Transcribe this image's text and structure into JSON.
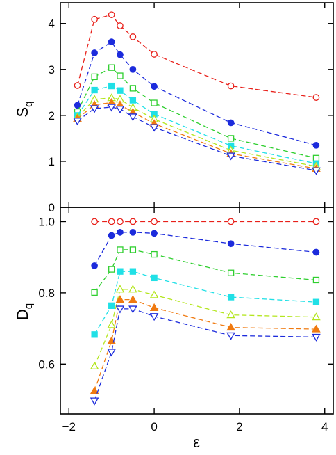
{
  "chart_data": [
    {
      "type": "line",
      "ylabel": "S",
      "ylabel_sub": "q",
      "xlim": [
        -2.2,
        4.2
      ],
      "ylim": [
        0,
        4.45
      ],
      "x_ticks": [
        -2,
        0,
        2,
        4
      ],
      "y_ticks": [
        0,
        1,
        2,
        3,
        4
      ],
      "y_tick_labels": [
        "0",
        "1",
        "2",
        "3",
        "4"
      ],
      "series": [
        {
          "color": "#e8201a",
          "marker": "circle-open",
          "x": [
            -1.8,
            -1.4,
            -1.0,
            -0.8,
            -0.5,
            0.0,
            1.8,
            3.8
          ],
          "y": [
            2.65,
            4.09,
            4.19,
            3.95,
            3.71,
            3.33,
            2.64,
            2.39
          ]
        },
        {
          "color": "#1c2bdc",
          "marker": "circle-filled",
          "x": [
            -1.8,
            -1.4,
            -1.0,
            -0.8,
            -0.5,
            0.0,
            1.8,
            3.8
          ],
          "y": [
            2.22,
            3.36,
            3.6,
            3.32,
            3.0,
            2.63,
            1.84,
            1.35
          ]
        },
        {
          "color": "#2fcf2f",
          "marker": "square-open",
          "x": [
            -1.8,
            -1.4,
            -1.0,
            -0.8,
            -0.5,
            0.0,
            1.8,
            3.8
          ],
          "y": [
            2.08,
            2.84,
            3.04,
            2.86,
            2.59,
            2.27,
            1.5,
            1.07
          ]
        },
        {
          "color": "#20e0e6",
          "marker": "square-filled",
          "x": [
            -1.8,
            -1.4,
            -1.0,
            -0.8,
            -0.5,
            0.0,
            1.8,
            3.8
          ],
          "y": [
            2.0,
            2.55,
            2.64,
            2.54,
            2.33,
            2.03,
            1.34,
            0.95
          ]
        },
        {
          "color": "#b4e61e",
          "marker": "triangle-up-open",
          "x": [
            -1.8,
            -1.4,
            -1.0,
            -0.8,
            -0.5,
            0.0,
            1.8,
            3.8
          ],
          "y": [
            1.96,
            2.35,
            2.38,
            2.35,
            2.17,
            1.92,
            1.24,
            0.89
          ]
        },
        {
          "color": "#f07a10",
          "marker": "triangle-up-filled",
          "x": [
            -1.8,
            -1.4,
            -1.0,
            -0.8,
            -0.5,
            0.0,
            1.8,
            3.8
          ],
          "y": [
            1.93,
            2.23,
            2.28,
            2.23,
            2.07,
            1.82,
            1.17,
            0.84
          ]
        },
        {
          "color": "#1c2bdc",
          "marker": "triangle-down-open",
          "x": [
            -1.8,
            -1.4,
            -1.0,
            -0.8,
            -0.5,
            0.0,
            1.8,
            3.8
          ],
          "y": [
            1.88,
            2.15,
            2.18,
            2.14,
            1.97,
            1.74,
            1.12,
            0.8
          ]
        }
      ]
    },
    {
      "type": "line",
      "xlabel": "ε",
      "ylabel": "D",
      "ylabel_sub": "q",
      "xlim": [
        -2.2,
        4.2
      ],
      "ylim": [
        0.46,
        1.04
      ],
      "x_ticks": [
        -2,
        0,
        2,
        4
      ],
      "x_tick_labels": [
        "−2",
        "0",
        "2",
        "4"
      ],
      "y_ticks": [
        0.6,
        0.8,
        1.0
      ],
      "y_tick_labels": [
        "0.6",
        "0.8",
        "1.0"
      ],
      "series": [
        {
          "color": "#e8201a",
          "marker": "circle-open",
          "x": [
            -1.4,
            -1.0,
            -0.8,
            -0.5,
            0.0,
            1.8,
            3.8
          ],
          "y": [
            1.0,
            1.0,
            1.0,
            1.0,
            1.0,
            1.0,
            1.0
          ]
        },
        {
          "color": "#1c2bdc",
          "marker": "circle-filled",
          "x": [
            -1.4,
            -1.0,
            -0.8,
            -0.5,
            0.0,
            1.8,
            3.8
          ],
          "y": [
            0.876,
            0.961,
            0.97,
            0.97,
            0.967,
            0.938,
            0.914
          ]
        },
        {
          "color": "#2fcf2f",
          "marker": "square-open",
          "x": [
            -1.4,
            -1.0,
            -0.8,
            -0.5,
            0.0,
            1.8,
            3.8
          ],
          "y": [
            0.801,
            0.866,
            0.921,
            0.921,
            0.908,
            0.856,
            0.836
          ]
        },
        {
          "color": "#20e0e6",
          "marker": "square-filled",
          "x": [
            -1.4,
            -1.0,
            -0.8,
            -0.5,
            0.0,
            1.8,
            3.8
          ],
          "y": [
            0.683,
            0.764,
            0.86,
            0.86,
            0.842,
            0.788,
            0.774
          ]
        },
        {
          "color": "#b4e61e",
          "marker": "triangle-up-open",
          "x": [
            -1.4,
            -1.0,
            -0.8,
            -0.5,
            0.0,
            1.8,
            3.8
          ],
          "y": [
            0.594,
            0.71,
            0.81,
            0.81,
            0.794,
            0.738,
            0.732
          ]
        },
        {
          "color": "#f07a10",
          "marker": "triangle-up-filled",
          "x": [
            -1.4,
            -1.0,
            -0.8,
            -0.5,
            0.0,
            1.8,
            3.8
          ],
          "y": [
            0.525,
            0.665,
            0.781,
            0.781,
            0.758,
            0.703,
            0.698
          ]
        },
        {
          "color": "#1c2bdc",
          "marker": "triangle-down-open",
          "x": [
            -1.4,
            -1.0,
            -0.8,
            -0.5,
            0.0,
            1.8,
            3.8
          ],
          "y": [
            0.497,
            0.634,
            0.755,
            0.755,
            0.734,
            0.68,
            0.676
          ]
        }
      ]
    }
  ]
}
